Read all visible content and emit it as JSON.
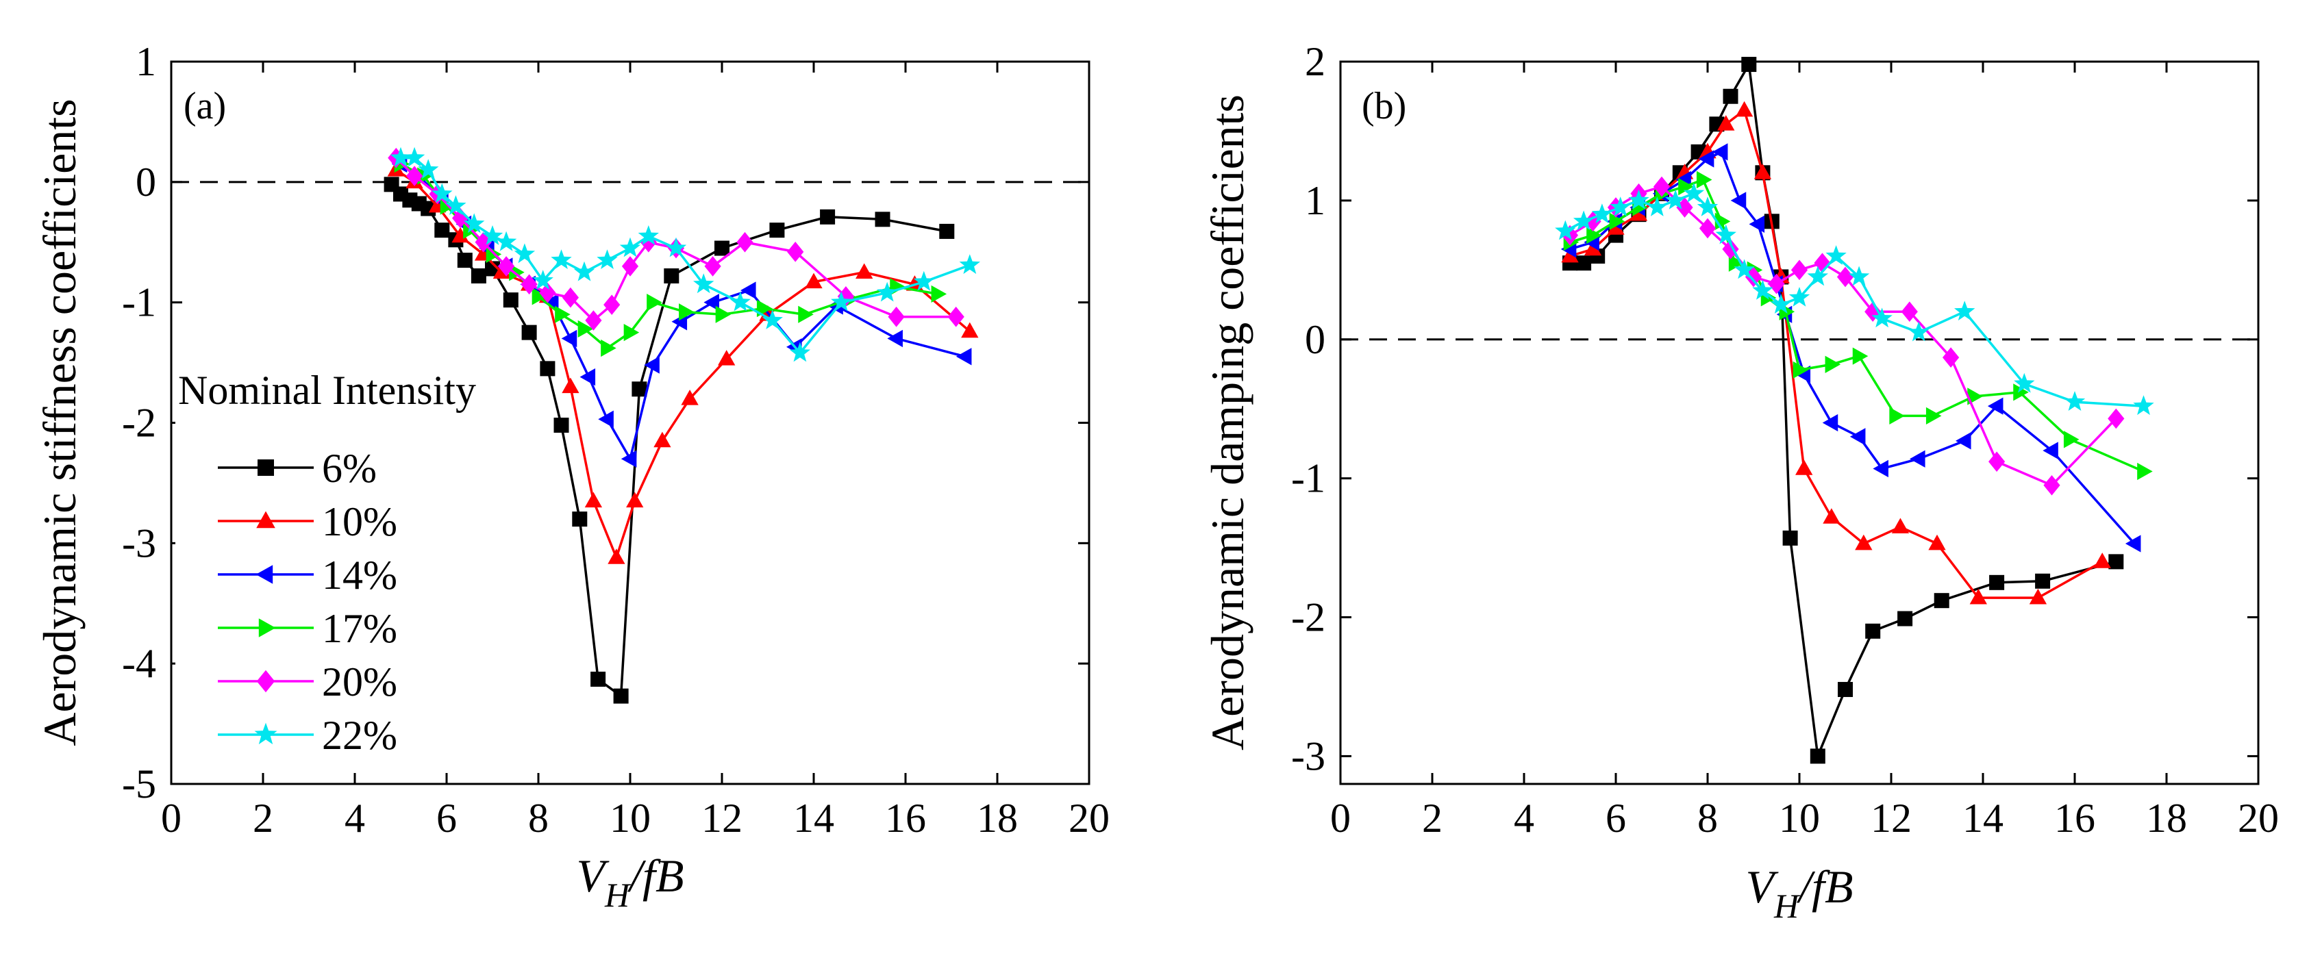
{
  "figure": {
    "legend_title": "Nominal Intensity",
    "x_label_main": "V",
    "x_label_sub": "H",
    "x_label_tail": "/fB"
  },
  "chart_data": [
    {
      "type": "line",
      "panel_label": "(a)",
      "title": "",
      "xlabel": "V_H/fB",
      "ylabel": "Aerodynamic stiffness coefficients",
      "xlim": [
        0,
        20
      ],
      "ylim": [
        -5,
        1
      ],
      "xticks": [
        "0",
        "2",
        "4",
        "6",
        "8",
        "10",
        "12",
        "14",
        "16",
        "18",
        "20"
      ],
      "yticks": [
        "1",
        "0",
        "-1",
        "-2",
        "-3",
        "-4",
        "-5"
      ],
      "reference_line": 0,
      "legend_entries": [
        "6%",
        "10%",
        "14%",
        "17%",
        "20%",
        "22%"
      ],
      "series": [
        {
          "name": "6%",
          "color": "#000000",
          "marker": "square",
          "x": [
            4.8,
            5.0,
            5.2,
            5.4,
            5.6,
            5.9,
            6.2,
            6.4,
            6.7,
            7.0,
            7.4,
            7.8,
            8.2,
            8.5,
            8.9,
            9.3,
            9.8,
            10.2,
            10.9,
            12.0,
            13.2,
            14.3,
            15.5,
            16.9
          ],
          "y": [
            -0.02,
            -0.1,
            -0.15,
            -0.18,
            -0.22,
            -0.4,
            -0.48,
            -0.65,
            -0.78,
            -0.72,
            -0.98,
            -1.25,
            -1.55,
            -2.02,
            -2.8,
            -4.13,
            -4.27,
            -1.72,
            -0.78,
            -0.55,
            -0.4,
            -0.29,
            -0.31,
            -0.41
          ]
        },
        {
          "name": "10%",
          "color": "#ff0000",
          "marker": "triangle-up",
          "x": [
            4.9,
            5.3,
            5.8,
            6.3,
            6.8,
            7.2,
            7.8,
            8.2,
            8.7,
            9.2,
            9.7,
            10.1,
            10.7,
            11.3,
            12.1,
            13.0,
            14.0,
            15.1,
            16.2,
            17.4
          ],
          "y": [
            0.1,
            0.0,
            -0.2,
            -0.45,
            -0.6,
            -0.75,
            -0.85,
            -0.95,
            -1.7,
            -2.65,
            -3.12,
            -2.65,
            -2.15,
            -1.8,
            -1.47,
            -1.1,
            -0.83,
            -0.75,
            -0.85,
            -1.24
          ]
        },
        {
          "name": "14%",
          "color": "#0000ff",
          "marker": "triangle-left",
          "x": [
            5.0,
            5.4,
            5.9,
            6.4,
            6.9,
            7.3,
            7.8,
            8.3,
            8.7,
            9.1,
            9.5,
            10.0,
            10.5,
            11.1,
            11.8,
            12.6,
            13.6,
            14.5,
            15.8,
            17.3
          ],
          "y": [
            0.15,
            0.05,
            -0.15,
            -0.35,
            -0.55,
            -0.7,
            -0.85,
            -1.0,
            -1.3,
            -1.62,
            -1.97,
            -2.3,
            -1.52,
            -1.16,
            -1.0,
            -0.9,
            -1.37,
            -1.03,
            -1.3,
            -1.45
          ]
        },
        {
          "name": "17%",
          "color": "#00ee00",
          "marker": "triangle-right",
          "x": [
            5.0,
            5.5,
            6.0,
            6.5,
            7.0,
            7.5,
            8.0,
            8.5,
            9.0,
            9.5,
            10.0,
            10.5,
            11.2,
            12.0,
            12.9,
            13.8,
            14.8,
            15.8,
            16.7
          ],
          "y": [
            0.15,
            0.05,
            -0.2,
            -0.4,
            -0.6,
            -0.75,
            -0.95,
            -1.1,
            -1.22,
            -1.38,
            -1.25,
            -1.0,
            -1.08,
            -1.1,
            -1.05,
            -1.1,
            -0.97,
            -0.87,
            -0.93
          ]
        },
        {
          "name": "20%",
          "color": "#ff00ff",
          "marker": "diamond",
          "x": [
            4.9,
            5.3,
            5.8,
            6.3,
            6.8,
            7.3,
            7.8,
            8.2,
            8.7,
            9.2,
            9.6,
            10.0,
            10.4,
            11.0,
            11.8,
            12.5,
            13.6,
            14.7,
            15.8,
            17.1
          ],
          "y": [
            0.2,
            0.05,
            -0.1,
            -0.3,
            -0.5,
            -0.7,
            -0.85,
            -0.92,
            -0.96,
            -1.15,
            -1.02,
            -0.7,
            -0.5,
            -0.55,
            -0.7,
            -0.5,
            -0.58,
            -0.95,
            -1.12,
            -1.12
          ]
        },
        {
          "name": "22%",
          "color": "#00e5ee",
          "marker": "star",
          "x": [
            5.0,
            5.3,
            5.6,
            5.9,
            6.2,
            6.6,
            7.0,
            7.3,
            7.7,
            8.1,
            8.5,
            9.0,
            9.5,
            10.0,
            10.4,
            11.0,
            11.6,
            12.4,
            13.1,
            13.7,
            14.6,
            15.6,
            16.4,
            17.4
          ],
          "y": [
            0.2,
            0.2,
            0.1,
            -0.1,
            -0.2,
            -0.35,
            -0.45,
            -0.5,
            -0.6,
            -0.82,
            -0.65,
            -0.75,
            -0.65,
            -0.55,
            -0.45,
            -0.55,
            -0.85,
            -1.0,
            -1.15,
            -1.42,
            -1.0,
            -0.92,
            -0.83,
            -0.69
          ]
        }
      ]
    },
    {
      "type": "line",
      "panel_label": "(b)",
      "title": "",
      "xlabel": "V_H/fB",
      "ylabel": "Aerodynamic damping coefficients",
      "xlim": [
        0,
        20
      ],
      "ylim": [
        -3.2,
        2
      ],
      "xticks": [
        "0",
        "2",
        "4",
        "6",
        "8",
        "10",
        "12",
        "14",
        "16",
        "18",
        "20"
      ],
      "yticks": [
        "2",
        "1",
        "0",
        "-1",
        "-2",
        "-3"
      ],
      "reference_line": 0,
      "series": [
        {
          "name": "6%",
          "color": "#000000",
          "marker": "square",
          "x": [
            5.0,
            5.3,
            5.6,
            6.0,
            6.5,
            7.0,
            7.4,
            7.8,
            8.2,
            8.5,
            8.9,
            9.2,
            9.4,
            9.6,
            9.8,
            10.4,
            11.0,
            11.6,
            12.3,
            13.1,
            14.3,
            15.3,
            16.9
          ],
          "y": [
            0.55,
            0.55,
            0.6,
            0.75,
            0.9,
            1.05,
            1.2,
            1.35,
            1.55,
            1.75,
            1.98,
            1.2,
            0.85,
            0.45,
            -1.43,
            -3.0,
            -2.52,
            -2.1,
            -2.01,
            -1.88,
            -1.75,
            -1.74,
            -1.6
          ]
        },
        {
          "name": "10%",
          "color": "#ff0000",
          "marker": "triangle-up",
          "x": [
            5.0,
            5.5,
            6.0,
            6.5,
            7.0,
            7.5,
            8.0,
            8.4,
            8.8,
            9.2,
            9.6,
            10.1,
            10.7,
            11.4,
            12.2,
            13.0,
            13.9,
            15.2,
            16.6
          ],
          "y": [
            0.6,
            0.65,
            0.8,
            0.9,
            1.05,
            1.2,
            1.35,
            1.55,
            1.65,
            1.2,
            0.45,
            -0.93,
            -1.28,
            -1.47,
            -1.35,
            -1.47,
            -1.86,
            -1.86,
            -1.6
          ]
        },
        {
          "name": "14%",
          "color": "#0000ff",
          "marker": "triangle-left",
          "x": [
            5.0,
            5.5,
            6.0,
            6.5,
            7.0,
            7.5,
            8.0,
            8.3,
            8.7,
            9.1,
            9.5,
            9.7,
            10.1,
            10.7,
            11.3,
            11.8,
            12.6,
            13.6,
            14.3,
            15.5,
            17.3
          ],
          "y": [
            0.65,
            0.7,
            0.85,
            0.95,
            1.05,
            1.15,
            1.3,
            1.35,
            1.0,
            0.83,
            0.4,
            0.18,
            -0.25,
            -0.6,
            -0.7,
            -0.93,
            -0.86,
            -0.73,
            -0.48,
            -0.8,
            -1.47
          ]
        },
        {
          "name": "17%",
          "color": "#00ee00",
          "marker": "triangle-right",
          "x": [
            5.0,
            5.5,
            6.0,
            6.5,
            7.0,
            7.5,
            7.9,
            8.3,
            8.6,
            9.0,
            9.3,
            9.7,
            10.0,
            10.7,
            11.3,
            12.1,
            12.9,
            13.8,
            14.8,
            15.9,
            17.5
          ],
          "y": [
            0.7,
            0.75,
            0.85,
            0.95,
            1.05,
            1.1,
            1.15,
            0.85,
            0.55,
            0.5,
            0.3,
            0.2,
            -0.22,
            -0.18,
            -0.12,
            -0.55,
            -0.55,
            -0.41,
            -0.38,
            -0.72,
            -0.95
          ]
        },
        {
          "name": "20%",
          "color": "#ff00ff",
          "marker": "diamond",
          "x": [
            5.0,
            5.5,
            6.0,
            6.5,
            7.0,
            7.5,
            8.0,
            8.5,
            9.0,
            9.5,
            10.0,
            10.5,
            11.0,
            11.6,
            12.4,
            13.3,
            14.3,
            15.5,
            16.9
          ],
          "y": [
            0.75,
            0.85,
            0.95,
            1.05,
            1.1,
            0.95,
            0.8,
            0.65,
            0.45,
            0.4,
            0.5,
            0.55,
            0.45,
            0.2,
            0.2,
            -0.13,
            -0.88,
            -1.05,
            -0.57
          ]
        },
        {
          "name": "22%",
          "color": "#00e5ee",
          "marker": "star",
          "x": [
            4.9,
            5.3,
            5.7,
            6.1,
            6.5,
            6.9,
            7.3,
            7.7,
            8.0,
            8.4,
            8.8,
            9.2,
            9.6,
            10.0,
            10.4,
            10.8,
            11.3,
            11.8,
            12.6,
            13.6,
            14.9,
            16.0,
            17.5
          ],
          "y": [
            0.78,
            0.85,
            0.9,
            0.95,
            1.0,
            0.95,
            1.0,
            1.05,
            0.95,
            0.75,
            0.5,
            0.35,
            0.25,
            0.3,
            0.45,
            0.6,
            0.45,
            0.15,
            0.05,
            0.2,
            -0.32,
            -0.45,
            -0.48
          ]
        }
      ]
    }
  ]
}
